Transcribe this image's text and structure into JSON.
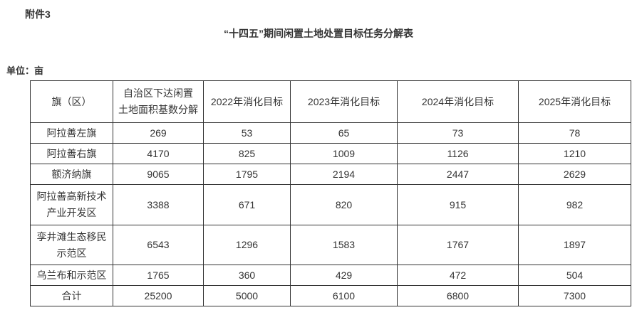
{
  "page": {
    "attachment_label": "附件3",
    "title": "“十四五”期间闲置土地处置目标任务分解表",
    "unit_label": "单位：亩",
    "text_color": "#333333",
    "border_color": "#333333",
    "background_color": "#ffffff"
  },
  "table": {
    "headers": [
      "旗（区）",
      "自治区下达闲置\n土地面积基数分解",
      "2022年消化目标",
      "2023年消化目标",
      "2024年消化目标",
      "2025年消化目标"
    ],
    "rows": [
      {
        "name": "阿拉善左旗",
        "values": [
          "269",
          "53",
          "65",
          "73",
          "78"
        ]
      },
      {
        "name": "阿拉善右旗",
        "values": [
          "4170",
          "825",
          "1009",
          "1126",
          "1210"
        ]
      },
      {
        "name": "额济纳旗",
        "values": [
          "9065",
          "1795",
          "2194",
          "2447",
          "2629"
        ]
      },
      {
        "name": "阿拉善高新技术\n产业开发区",
        "values": [
          "3388",
          "671",
          "820",
          "915",
          "982"
        ]
      },
      {
        "name": "孪井滩生态移民\n示范区",
        "values": [
          "6543",
          "1296",
          "1583",
          "1767",
          "1897"
        ]
      },
      {
        "name": "乌兰布和示范区",
        "values": [
          "1765",
          "360",
          "429",
          "472",
          "504"
        ]
      },
      {
        "name": "合计",
        "values": [
          "25200",
          "5000",
          "6100",
          "6800",
          "7300"
        ]
      }
    ]
  }
}
